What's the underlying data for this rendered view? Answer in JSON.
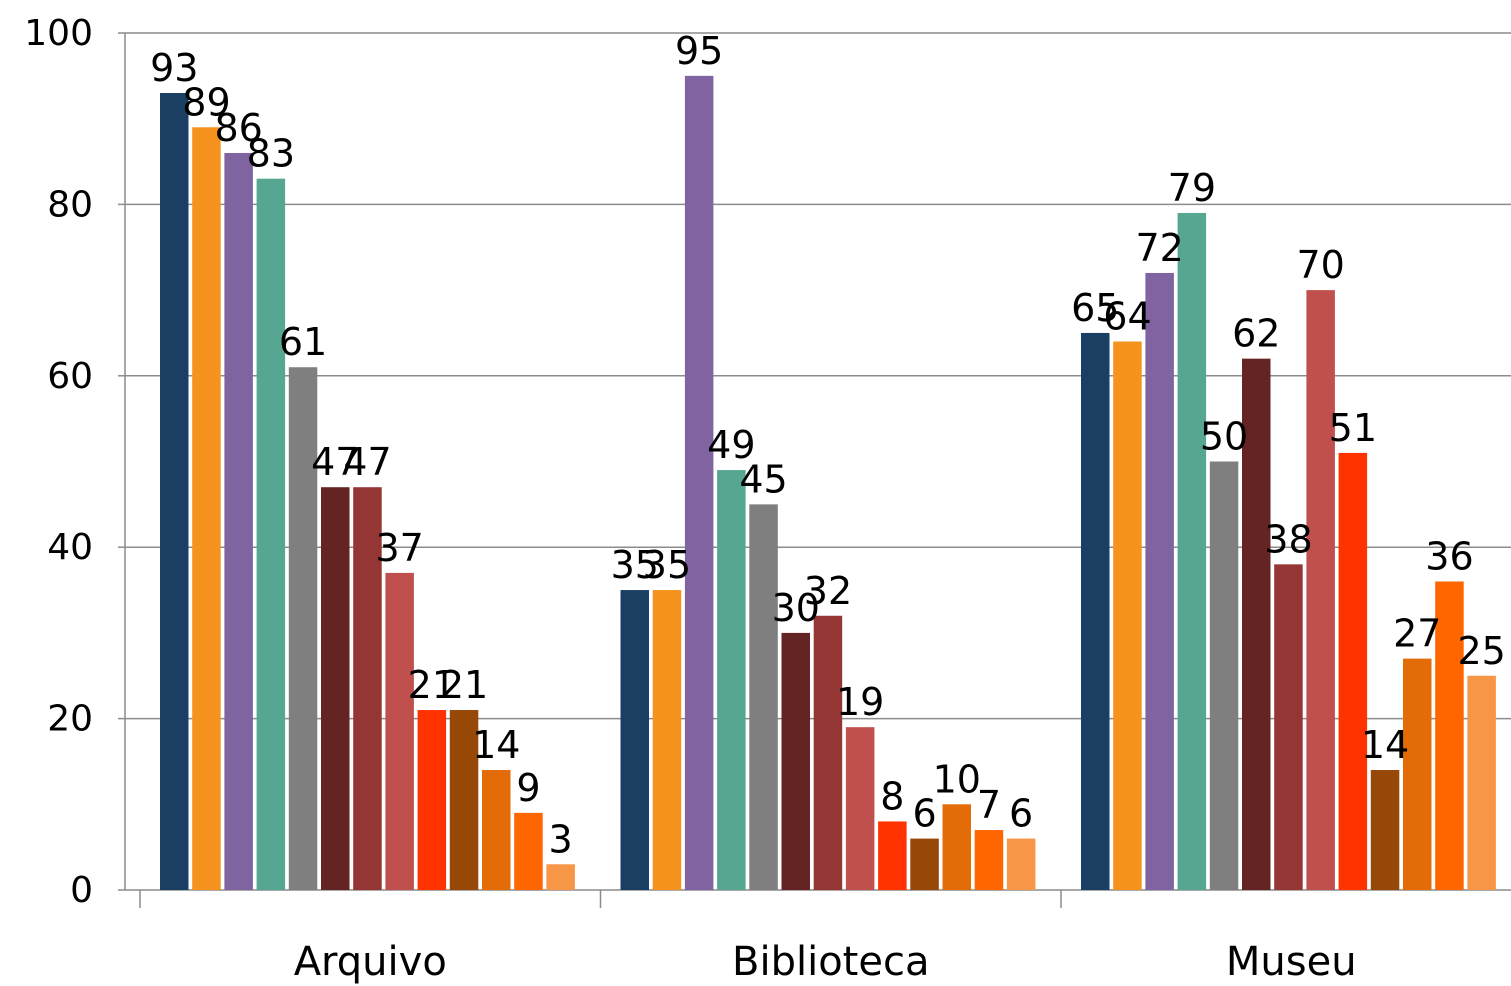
{
  "chart_data": {
    "type": "bar",
    "title": "",
    "xlabel": "",
    "ylabel": "",
    "ylim": [
      0,
      100
    ],
    "yticks": [
      "0",
      "20",
      "40",
      "60",
      "80",
      "100"
    ],
    "grid": true,
    "categories": [
      "Arquivo",
      "Biblioteca",
      "Museu"
    ],
    "series": [
      {
        "color": "#1b3f63",
        "values": [
          93,
          35,
          65
        ]
      },
      {
        "color": "#f5931e",
        "values": [
          89,
          35,
          64
        ]
      },
      {
        "color": "#8064a2",
        "values": [
          86,
          95,
          72
        ]
      },
      {
        "color": "#57a692",
        "values": [
          83,
          49,
          79
        ]
      },
      {
        "color": "#7f7f7f",
        "values": [
          61,
          45,
          50
        ]
      },
      {
        "color": "#632423",
        "values": [
          47,
          30,
          62
        ]
      },
      {
        "color": "#943634",
        "values": [
          47,
          32,
          38
        ]
      },
      {
        "color": "#c0504d",
        "values": [
          37,
          19,
          70
        ]
      },
      {
        "color": "#ff3300",
        "values": [
          21,
          8,
          51
        ]
      },
      {
        "color": "#974806",
        "values": [
          21,
          6,
          14
        ]
      },
      {
        "color": "#e36c09",
        "values": [
          14,
          10,
          27
        ]
      },
      {
        "color": "#ff6600",
        "values": [
          9,
          7,
          36
        ]
      },
      {
        "color": "#f79646",
        "values": [
          3,
          6,
          25
        ]
      }
    ]
  }
}
